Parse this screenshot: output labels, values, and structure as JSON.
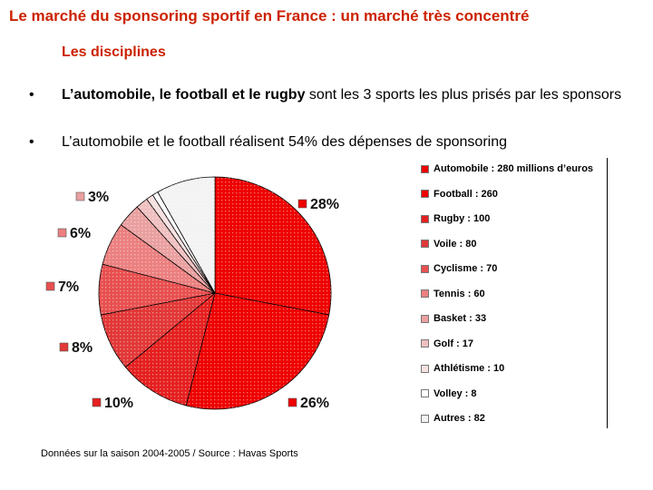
{
  "page": {
    "title": "Le marché du sponsoring sportif en France : un marché très concentré",
    "subtitle": "Les disciplines",
    "bullet_glyph": "•",
    "bullets": [
      {
        "bold": "L’automobile, le football et le rugby",
        "rest": " sont les 3 sports les plus prisés par les sponsors"
      },
      {
        "bold": "",
        "rest": "L’automobile et le football réalisent 54% des dépenses de sponsoring"
      }
    ],
    "source": "Données sur la saison 2004-2005 / Source : Havas Sports"
  },
  "chart_data": {
    "type": "pie",
    "title": "",
    "unit": "millions d'euros",
    "slices": [
      {
        "label": "Automobile",
        "legend": "Automobile : 280 millions d’euros",
        "value": 280,
        "color": "#ee0000",
        "pct_label": "28%"
      },
      {
        "label": "Football",
        "legend": "Football : 260",
        "value": 260,
        "color": "#ee0000",
        "pct_label": "26%"
      },
      {
        "label": "Rugby",
        "legend": "Rugby : 100",
        "value": 100,
        "color": "#e52020",
        "pct_label": "10%"
      },
      {
        "label": "Voile",
        "legend": "Voile : 80",
        "value": 80,
        "color": "#e23838",
        "pct_label": "8%"
      },
      {
        "label": "Cyclisme",
        "legend": "Cyclisme : 70",
        "value": 70,
        "color": "#e85050",
        "pct_label": "7%"
      },
      {
        "label": "Tennis",
        "legend": "Tennis : 60",
        "value": 60,
        "color": "#ec8080",
        "pct_label": "6%"
      },
      {
        "label": "Basket",
        "legend": "Basket : 33",
        "value": 33,
        "color": "#eaa0a0",
        "pct_label": "3%"
      },
      {
        "label": "Golf",
        "legend": "Golf : 17",
        "value": 17,
        "color": "#f0c0c0",
        "pct_label": ""
      },
      {
        "label": "Athlétisme",
        "legend": "Athlétisme : 10",
        "value": 10,
        "color": "#f7e0e0",
        "pct_label": ""
      },
      {
        "label": "Volley",
        "legend": "Volley : 8",
        "value": 8,
        "color": "#ffffff",
        "pct_label": ""
      },
      {
        "label": "Autres",
        "legend": "Autres : 82",
        "value": 82,
        "color": "#f3f3f3",
        "pct_label": ""
      }
    ]
  }
}
